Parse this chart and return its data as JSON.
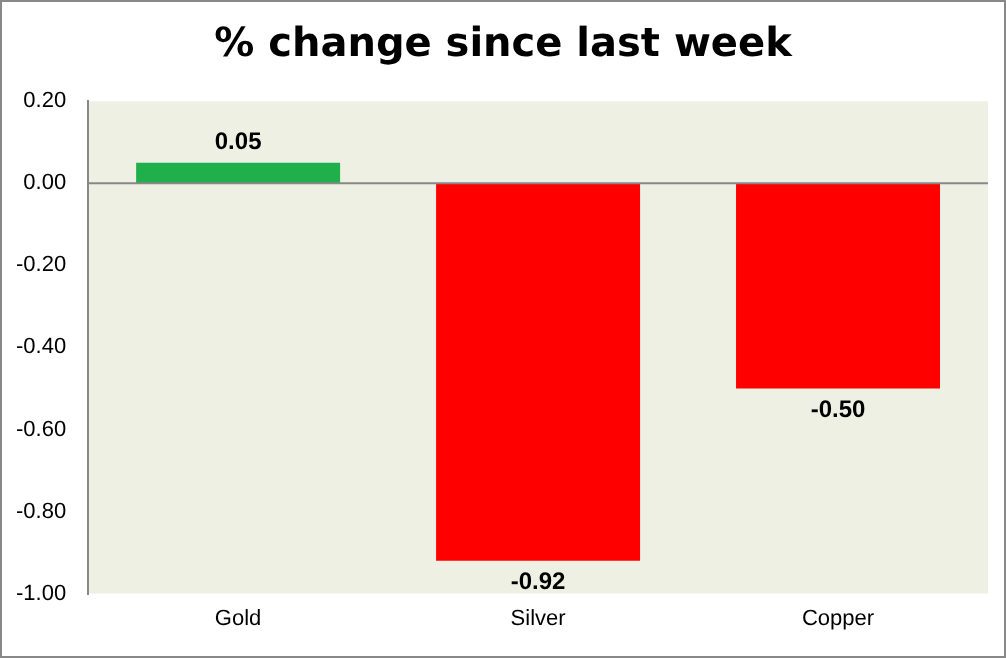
{
  "chart_data": {
    "type": "bar",
    "title": "% change since last week",
    "categories": [
      "Gold",
      "Silver",
      "Copper"
    ],
    "values": [
      0.05,
      -0.92,
      -0.5
    ],
    "colors": [
      "#1fb04b",
      "#ff0000",
      "#ff0000"
    ],
    "value_labels": [
      "0.05",
      "-0.92",
      "-0.50"
    ],
    "ylim": [
      -1.0,
      0.2
    ],
    "yticks": [
      {
        "value": 0.2,
        "label": "0.20"
      },
      {
        "value": 0,
        "label": "0.00"
      },
      {
        "value": -0.2,
        "label": "-0.20"
      },
      {
        "value": -0.4,
        "label": "-0.40"
      },
      {
        "value": -0.6,
        "label": "-0.60"
      },
      {
        "value": -0.8,
        "label": "-0.80"
      },
      {
        "value": -1.0,
        "label": "-1.00"
      }
    ],
    "legend": false
  }
}
